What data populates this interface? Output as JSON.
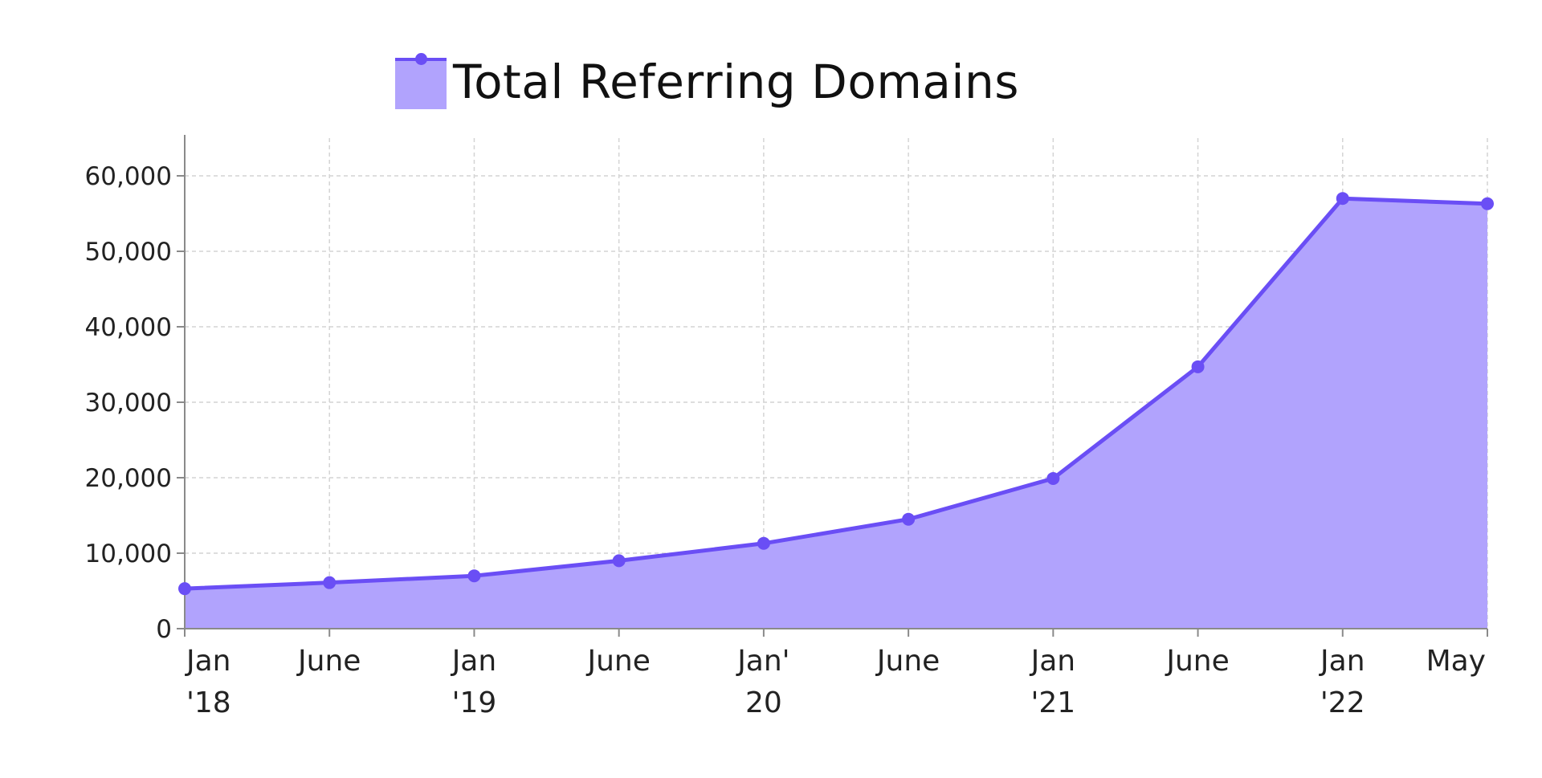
{
  "colors": {
    "line": "#6a4ef5",
    "area_fill": "#b1a3fd",
    "grid": "#d4d4d4",
    "axis": "#8a8a8a",
    "text": "#222222"
  },
  "chart_data": {
    "type": "area",
    "title": "",
    "xlabel": "",
    "ylabel": "",
    "legend": {
      "label": "Total Referring Domains",
      "placement": "top-center"
    },
    "grid": true,
    "ylim": [
      0,
      65000
    ],
    "y_ticks": [
      0,
      10000,
      20000,
      30000,
      40000,
      50000,
      60000
    ],
    "y_tick_labels": [
      "0",
      "10,000",
      "20,000",
      "30,000",
      "40,000",
      "50,000",
      "60,000"
    ],
    "categories": [
      [
        "Jan",
        "'18"
      ],
      [
        "June"
      ],
      [
        "Jan",
        "'19"
      ],
      [
        "June"
      ],
      [
        "Jan'",
        "20"
      ],
      [
        "June"
      ],
      [
        "Jan",
        "'21"
      ],
      [
        "June"
      ],
      [
        "Jan",
        "'22"
      ],
      [
        "May"
      ]
    ],
    "series": [
      {
        "name": "Total Referring Domains",
        "values": [
          5300,
          6100,
          7000,
          9000,
          11300,
          14500,
          19900,
          34700,
          57000,
          56300
        ]
      }
    ]
  }
}
